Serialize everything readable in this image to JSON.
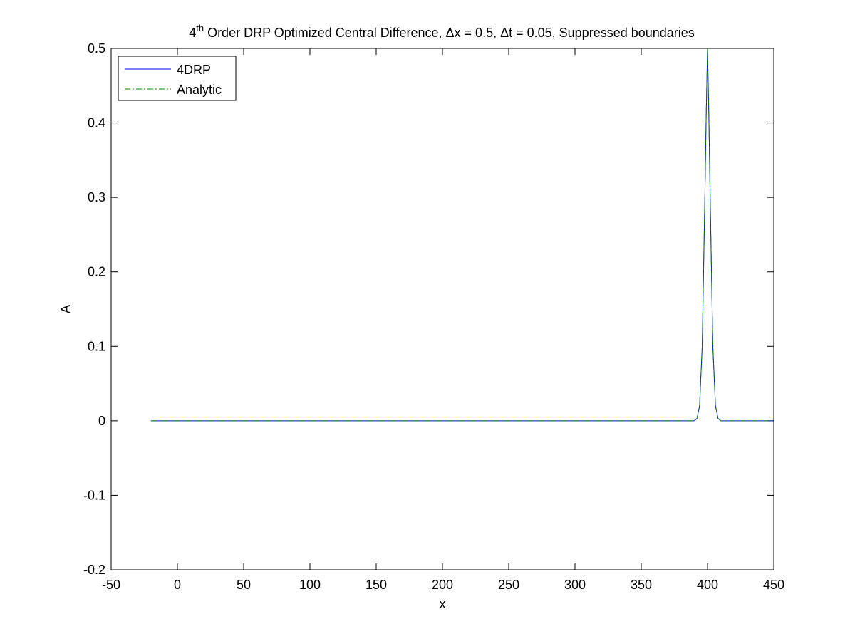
{
  "figure": {
    "title_superscript_base": "4",
    "title_superscript": "th",
    "title_rest": " Order DRP Optimized Central Difference, Δx = 0.5, Δt = 0.05, Suppressed boundaries"
  },
  "chart_data": {
    "type": "line",
    "title": "4th Order DRP Optimized Central Difference, Δx = 0.5, Δt = 0.05, Suppressed boundaries",
    "xlabel": "x",
    "ylabel": "A",
    "xlim": [
      -50,
      450
    ],
    "ylim": [
      -0.2,
      0.5
    ],
    "xticks": [
      "-50",
      "0",
      "50",
      "100",
      "150",
      "200",
      "250",
      "300",
      "350",
      "400",
      "450"
    ],
    "yticks": [
      "-0.2",
      "-0.1",
      "0",
      "0.1",
      "0.2",
      "0.3",
      "0.4",
      "0.5"
    ],
    "grid": false,
    "legend_position": "top-left",
    "series": [
      {
        "name": "4DRP",
        "color": "#0000ff",
        "style": "solid",
        "x": [
          -20,
          380,
          385,
          388,
          390,
          392,
          394,
          396,
          398,
          399,
          400,
          401,
          402,
          404,
          406,
          408,
          410,
          412,
          415,
          420,
          450
        ],
        "values": [
          0,
          0,
          0,
          0,
          0,
          0.003,
          0.02,
          0.1,
          0.3,
          0.41,
          0.5,
          0.41,
          0.3,
          0.1,
          0.02,
          0.003,
          0,
          0,
          0,
          0,
          0
        ]
      },
      {
        "name": "Analytic",
        "color": "#008000",
        "style": "dashdot",
        "x": [
          -20,
          380,
          385,
          388,
          390,
          392,
          394,
          396,
          398,
          399,
          400,
          401,
          402,
          404,
          406,
          408,
          410,
          412,
          415,
          420,
          450
        ],
        "values": [
          0,
          0,
          0,
          0,
          0,
          0.003,
          0.02,
          0.1,
          0.3,
          0.41,
          0.5,
          0.41,
          0.3,
          0.1,
          0.02,
          0.003,
          0,
          0,
          0,
          0,
          0
        ]
      }
    ]
  }
}
